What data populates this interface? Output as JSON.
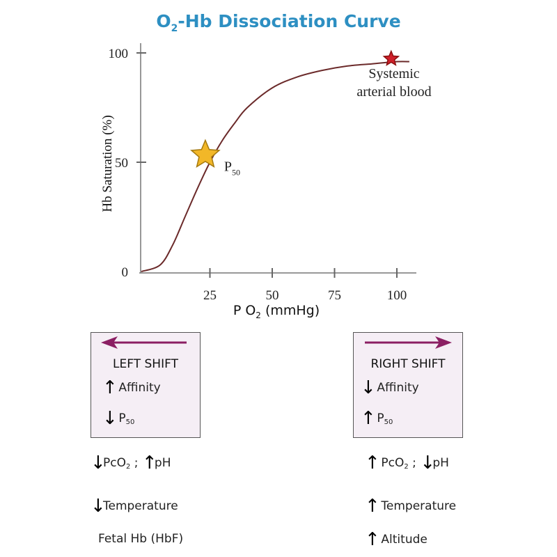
{
  "title": {
    "main": "O",
    "sub": "2",
    "rest": "-Hb Dissociation Curve"
  },
  "chart_data": {
    "type": "line",
    "title": "O2-Hb Dissociation Curve",
    "xlabel": "P O2 (mmHg)",
    "ylabel": "Hb Saturation (%)",
    "xlim": [
      0,
      105
    ],
    "ylim": [
      0,
      100
    ],
    "xticks": [
      "25",
      "50",
      "75",
      "100"
    ],
    "yticks": [
      "0",
      "50",
      "100"
    ],
    "series": [
      {
        "x": [
          0,
          5,
          10,
          15,
          20,
          25,
          30,
          35,
          40,
          50,
          60,
          70,
          80,
          90,
          100,
          105
        ],
        "y": [
          0,
          3,
          12,
          25,
          38,
          50,
          60,
          68,
          75,
          84,
          89,
          92,
          94,
          95,
          96,
          96
        ],
        "color": "#6b2a2a"
      }
    ],
    "annotations": [
      {
        "label": "P",
        "sub": "50",
        "x": 24,
        "y": 54,
        "marker": "gold-star"
      },
      {
        "label": "Systemic arterial blood",
        "line1": "Systemic",
        "line2": "arterial blood",
        "x": 98,
        "y": 97,
        "marker": "red-star"
      }
    ]
  },
  "left_box": {
    "title": "LEFT SHIFT",
    "affinity": "Affinity",
    "p": "P",
    "p_sub": "50",
    "arrow_color": "#8b1f63"
  },
  "right_box": {
    "title": "RIGHT SHIFT",
    "affinity": "Affinity",
    "p": "P",
    "p_sub": "50",
    "arrow_color": "#8b1f63"
  },
  "left_list": {
    "pco2": "PcO",
    "pco2_sub": "2",
    "sep": ";",
    "ph": "pH",
    "temp": "Temperature",
    "fetal": "Fetal Hb (HbF)"
  },
  "right_list": {
    "pco2": "PcO",
    "pco2_sub": "2",
    "sep": ";",
    "ph": "pH",
    "temp": "Temperature",
    "altitude": "Altitude"
  }
}
